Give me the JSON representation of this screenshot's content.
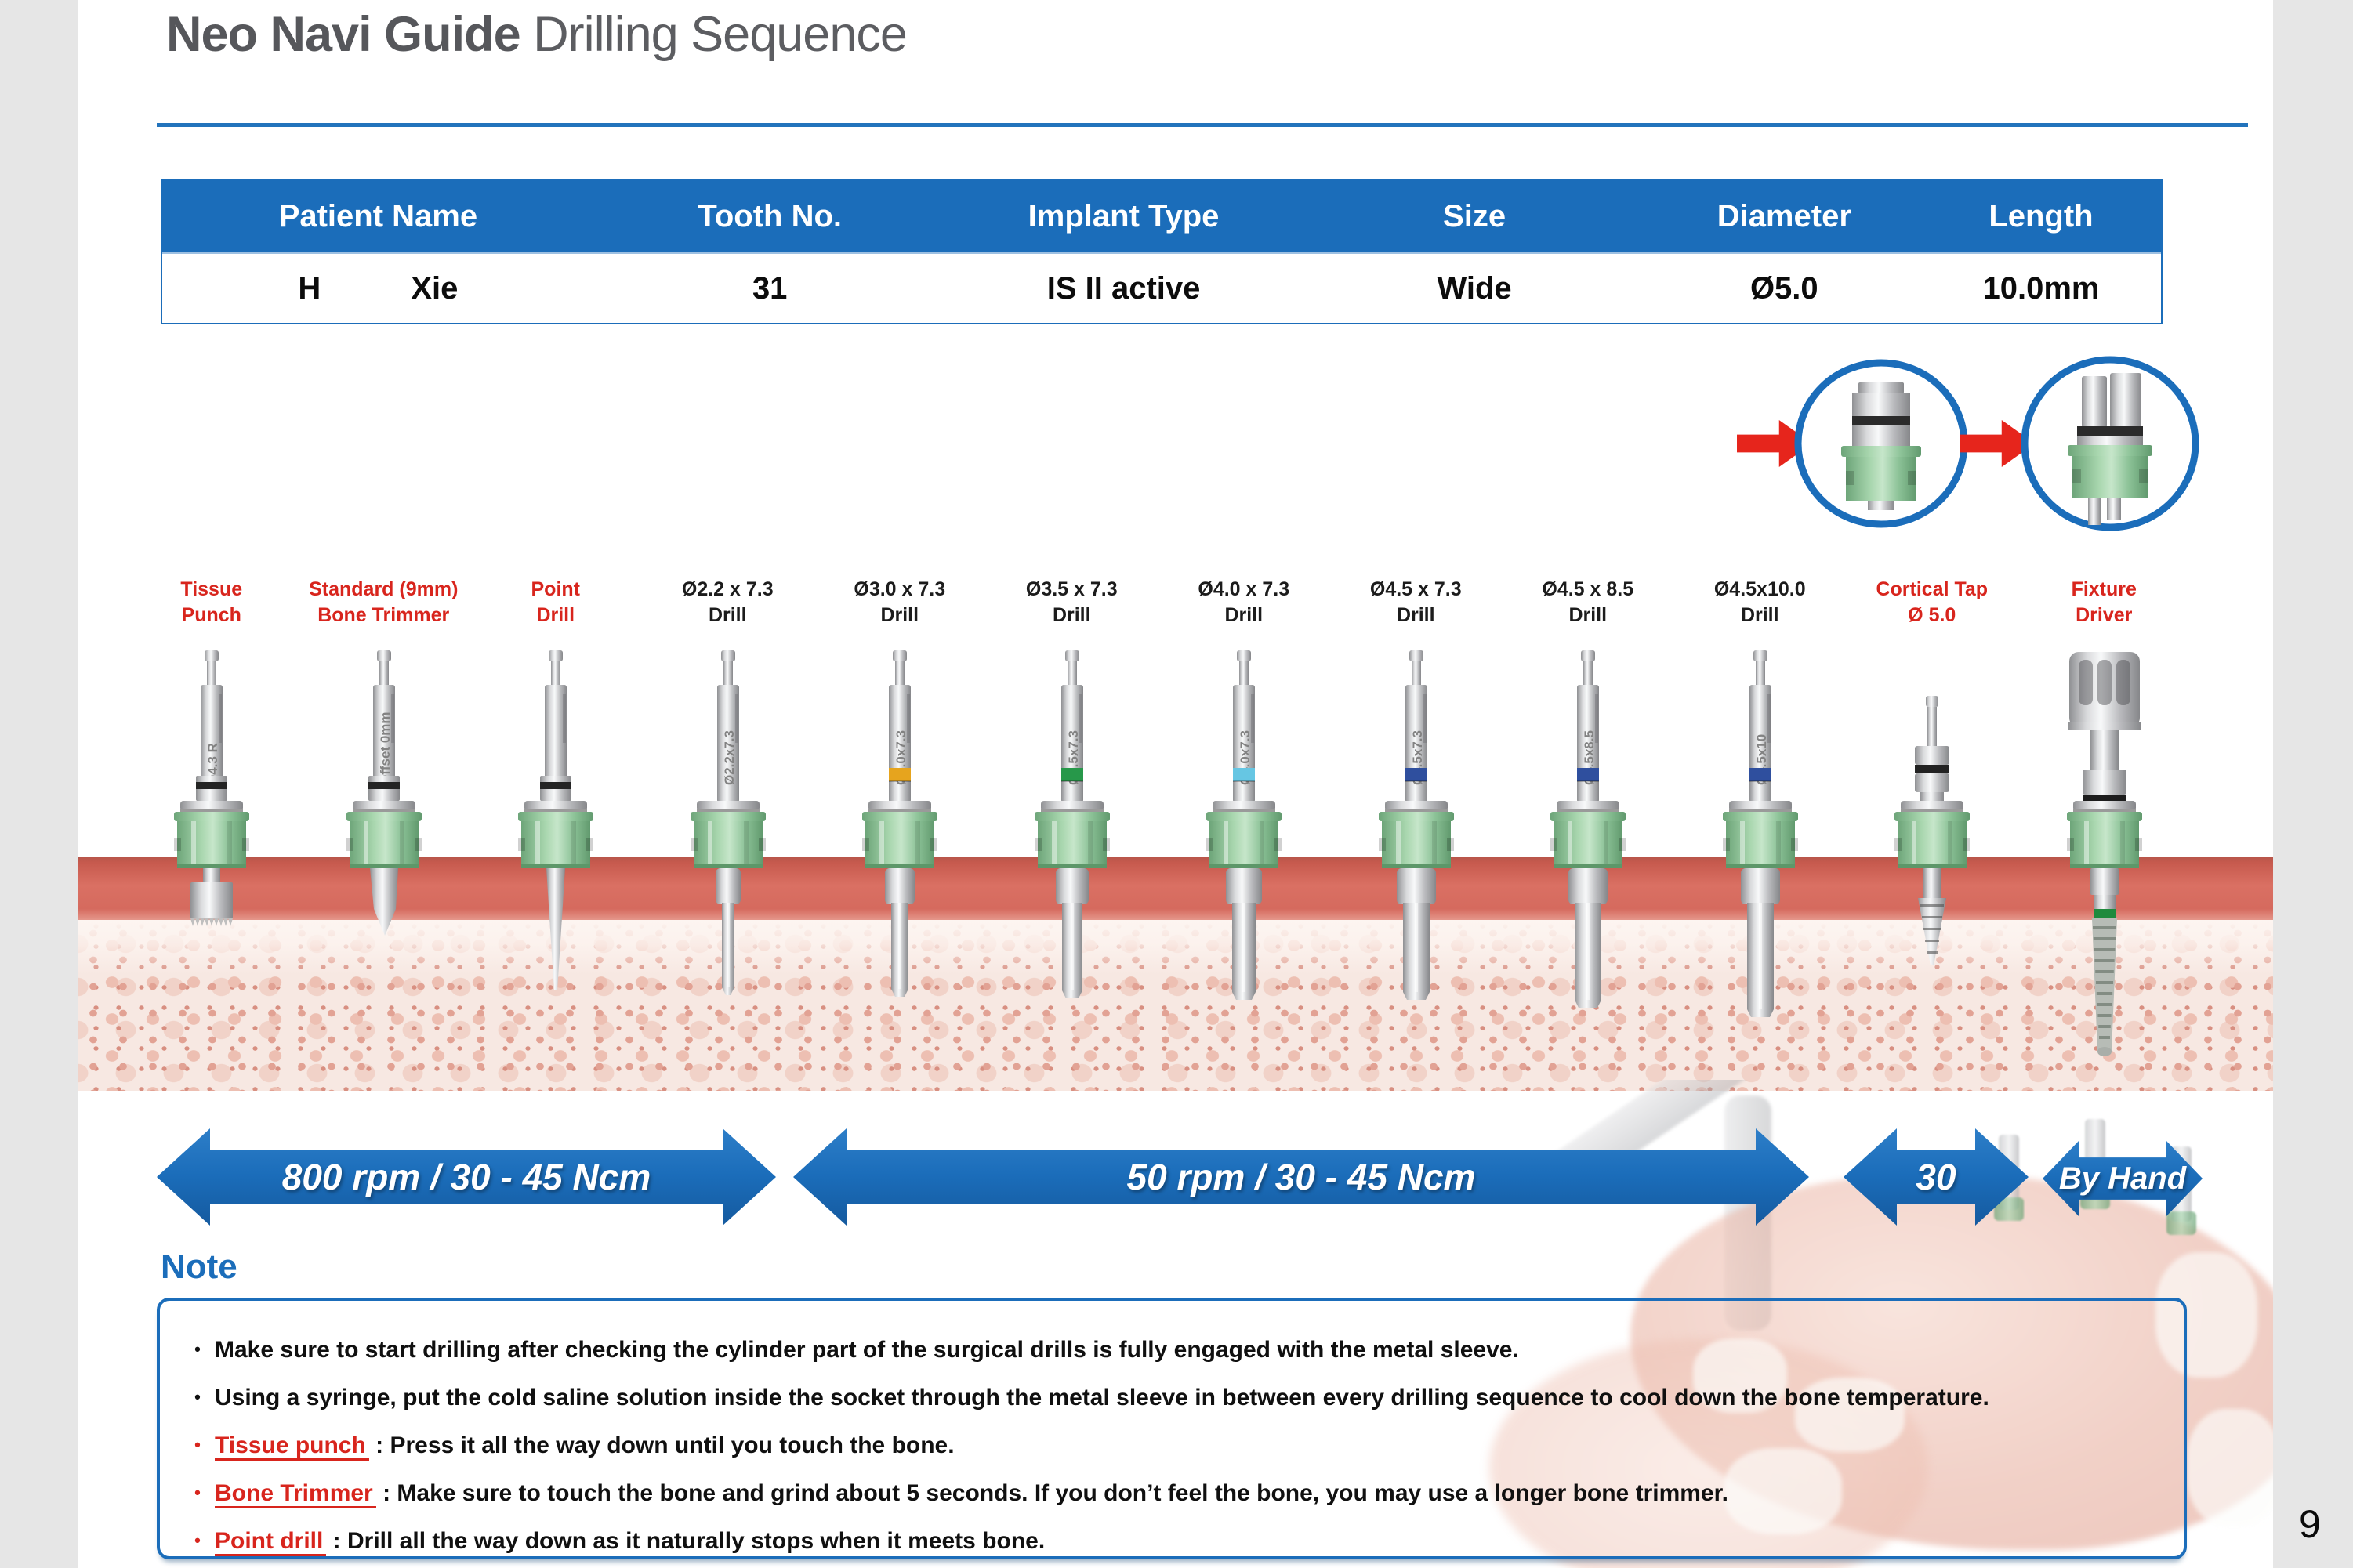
{
  "page": {
    "title_bold": "Neo Navi Guide",
    "title_regular": " Drilling Sequence",
    "page_number": "9"
  },
  "colors": {
    "accent_blue": "#1b6dba",
    "accent_red": "#d8251d",
    "gum_red": "#d56a5e",
    "sleeve_green": "#8cc297"
  },
  "patient_table": {
    "headers": [
      "Patient Name",
      "Tooth No.",
      "Implant Type",
      "Size",
      "Diameter",
      "Length"
    ],
    "values": {
      "first_name": "H",
      "last_name": "Xie",
      "tooth_no": "31",
      "implant_type": "IS II active",
      "size": "Wide",
      "diameter": "Ø5.0",
      "length": "10.0mm"
    }
  },
  "sequence": {
    "items": [
      {
        "line1": "Tissue",
        "line2": "Punch",
        "label_color": "red",
        "type": "punch",
        "shaft_label": "Ø4.3 R",
        "band": "",
        "flute": 0,
        "depth": 352
      },
      {
        "line1": "Standard (9mm)",
        "line2": "Bone Trimmer",
        "label_color": "red",
        "type": "trimmer",
        "shaft_label": "Offset 0mm",
        "band": "",
        "flute": 0,
        "depth": 364
      },
      {
        "line1": "Point",
        "line2": "Drill",
        "label_color": "red",
        "type": "point",
        "shaft_label": "",
        "band": "",
        "flute": 0,
        "depth": 434
      },
      {
        "line1": "Ø2.2 x 7.3",
        "line2": "Drill",
        "label_color": "black",
        "type": "twist",
        "shaft_label": "Ø2.2x7.3",
        "band": "",
        "flute": 16,
        "depth": 440
      },
      {
        "line1": "Ø3.0 x 7.3",
        "line2": "Drill",
        "label_color": "black",
        "type": "twist",
        "shaft_label": "Ø3.0x7.3",
        "band": "#e6a41e",
        "flute": 22,
        "depth": 442
      },
      {
        "line1": "Ø3.5 x 7.3",
        "line2": "Drill",
        "label_color": "black",
        "type": "twist",
        "shaft_label": "Ø3.5x7.3",
        "band": "#27984a",
        "flute": 26,
        "depth": 444
      },
      {
        "line1": "Ø4.0 x 7.3",
        "line2": "Drill",
        "label_color": "black",
        "type": "twist",
        "shaft_label": "Ø4.0x7.3",
        "band": "#66c6e3",
        "flute": 30,
        "depth": 446
      },
      {
        "line1": "Ø4.5 x 7.3",
        "line2": "Drill",
        "label_color": "black",
        "type": "twist",
        "shaft_label": "Ø4.5x7.3",
        "band": "#2f4f9e",
        "flute": 34,
        "depth": 446
      },
      {
        "line1": "Ø4.5 x 8.5",
        "line2": "Drill",
        "label_color": "black",
        "type": "twist",
        "shaft_label": "Ø4.5x8.5",
        "band": "#2f4f9e",
        "flute": 34,
        "depth": 456
      },
      {
        "line1": "Ø4.5x10.0",
        "line2": "Drill",
        "label_color": "black",
        "type": "twist",
        "shaft_label": "Ø4.5x10",
        "band": "#2f4f9e",
        "flute": 34,
        "depth": 468
      },
      {
        "line1": "Cortical Tap",
        "line2": "Ø 5.0",
        "label_color": "red",
        "type": "tap",
        "shaft_label": "",
        "band": "",
        "flute": 0,
        "depth": 402
      },
      {
        "line1": "Fixture",
        "line2": "Driver",
        "label_color": "red",
        "type": "driver",
        "shaft_label": "",
        "band": "",
        "flute": 0,
        "depth": 518
      }
    ]
  },
  "speeds": {
    "arrows": [
      {
        "label": "800 rpm / 30 - 45 Ncm"
      },
      {
        "label": "50 rpm / 30 - 45 Ncm"
      },
      {
        "label": "30"
      },
      {
        "label": "By Hand"
      }
    ]
  },
  "note": {
    "heading": "Note",
    "bullets": [
      {
        "term": "",
        "text": "Make sure to start drilling after checking the cylinder part of the surgical drills is fully engaged with the metal sleeve."
      },
      {
        "term": "",
        "text": "Using a syringe, put the cold saline solution inside the socket through the metal sleeve in between every drilling sequence to cool down the bone temperature."
      },
      {
        "term": "Tissue punch",
        "text": " : Press it all the way down until you touch the bone."
      },
      {
        "term": "Bone Trimmer",
        "text": " : Make sure to touch the bone and grind about 5 seconds. If you don’t feel the bone, you may use a longer bone trimmer."
      },
      {
        "term": "Point drill",
        "text": " : Drill all the way down as it naturally stops when it meets bone."
      }
    ]
  }
}
